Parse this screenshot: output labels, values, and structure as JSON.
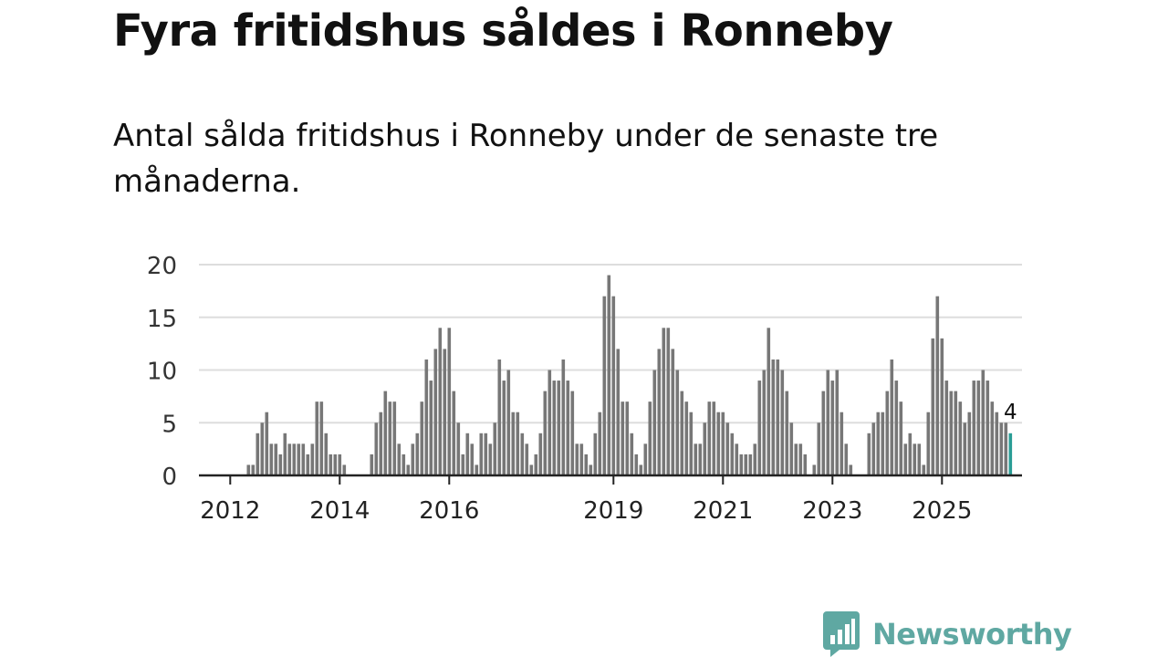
{
  "header": {
    "title": "Fyra fritidshus såldes i Ronneby",
    "subtitle": "Antal sålda fritidshus i Ronneby under de senaste tre månaderna."
  },
  "brand": {
    "name": "Newsworthy",
    "color": "#5fa8a2"
  },
  "chart_data": {
    "type": "bar",
    "title": "Fyra fritidshus såldes i Ronneby",
    "subtitle": "Antal sålda fritidshus i Ronneby under de senaste tre månaderna.",
    "x_start": "2011-07",
    "x_unit": "month",
    "values": [
      0,
      0,
      0,
      0,
      0,
      0,
      0,
      0,
      0,
      0,
      1,
      1,
      4,
      5,
      6,
      3,
      3,
      2,
      4,
      3,
      3,
      3,
      3,
      2,
      3,
      7,
      7,
      4,
      2,
      2,
      2,
      1,
      0,
      0,
      0,
      0,
      0,
      2,
      5,
      6,
      8,
      7,
      7,
      3,
      2,
      1,
      3,
      4,
      7,
      11,
      9,
      12,
      14,
      12,
      14,
      8,
      5,
      2,
      4,
      3,
      1,
      4,
      4,
      3,
      5,
      11,
      9,
      10,
      6,
      6,
      4,
      3,
      1,
      2,
      4,
      8,
      10,
      9,
      9,
      11,
      9,
      8,
      3,
      3,
      2,
      1,
      4,
      6,
      17,
      19,
      17,
      12,
      7,
      7,
      4,
      2,
      1,
      3,
      7,
      10,
      12,
      14,
      14,
      12,
      10,
      8,
      7,
      6,
      3,
      3,
      5,
      7,
      7,
      6,
      6,
      5,
      4,
      3,
      2,
      2,
      2,
      3,
      9,
      10,
      14,
      11,
      11,
      10,
      8,
      5,
      3,
      3,
      2,
      0,
      1,
      5,
      8,
      10,
      9,
      10,
      6,
      3,
      1,
      0,
      0,
      0,
      4,
      5,
      6,
      6,
      8,
      11,
      9,
      7,
      3,
      4,
      3,
      3,
      1,
      6,
      13,
      17,
      13,
      9,
      8,
      8,
      7,
      5,
      6,
      9,
      9,
      10,
      9,
      7,
      6,
      5,
      5,
      4
    ],
    "highlight_last": true,
    "last_label": "4",
    "x_ticks": [
      "2012",
      "2014",
      "2016",
      "2019",
      "2021",
      "2023",
      "2025"
    ],
    "y_ticks": [
      0,
      5,
      10,
      15,
      20
    ],
    "ylim": [
      0,
      20
    ],
    "grid": true,
    "colors": {
      "bar": "#777777",
      "highlight": "#2a9d96",
      "grid": "#dddddd",
      "axis": "#222222"
    }
  }
}
